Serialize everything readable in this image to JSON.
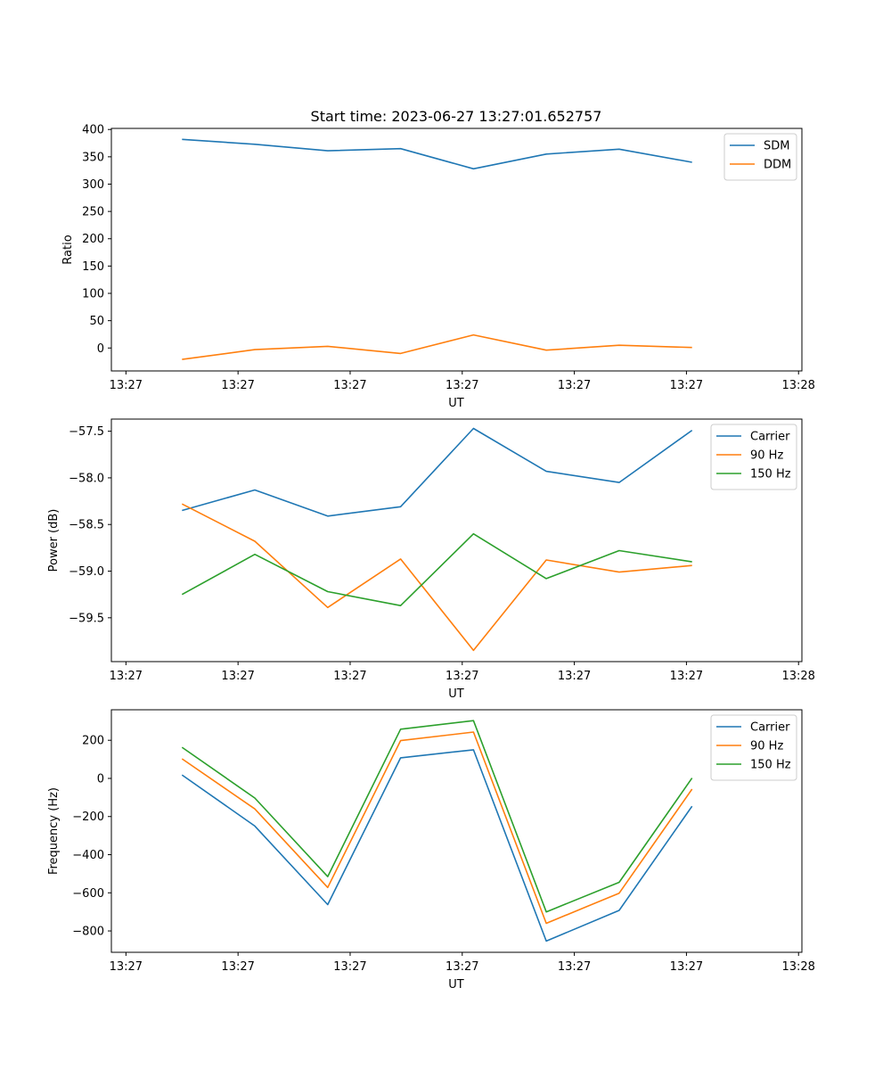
{
  "figure": {
    "title": "Start time: 2023-06-27 13:27:01.652757"
  },
  "chart_data": [
    {
      "type": "line",
      "xlabel": "UT",
      "ylabel": "Ratio",
      "x_tick_labels": [
        "13:27",
        "13:27",
        "13:27",
        "13:27",
        "13:27",
        "13:27",
        "13:28"
      ],
      "x_ticks": [
        0,
        1,
        2,
        3,
        4,
        5,
        6
      ],
      "x": [
        0.5,
        1.15,
        1.8,
        2.45,
        3.1,
        3.75,
        4.4,
        5.05
      ],
      "xlim": [
        -0.13,
        6.03
      ],
      "ylim": [
        -42,
        402
      ],
      "y_ticks": [
        0,
        50,
        100,
        150,
        200,
        250,
        300,
        350,
        400
      ],
      "legend_position": "upper right",
      "series": [
        {
          "name": "SDM",
          "color": "#1f77b4",
          "values": [
            382,
            373,
            361,
            365,
            328,
            355,
            364,
            340
          ]
        },
        {
          "name": "DDM",
          "color": "#ff7f0e",
          "values": [
            -21,
            -3,
            3,
            -10,
            24,
            -4,
            5,
            1
          ]
        }
      ]
    },
    {
      "type": "line",
      "xlabel": "UT",
      "ylabel": "Power (dB)",
      "x_tick_labels": [
        "13:27",
        "13:27",
        "13:27",
        "13:27",
        "13:27",
        "13:27",
        "13:28"
      ],
      "x_ticks": [
        0,
        1,
        2,
        3,
        4,
        5,
        6
      ],
      "x": [
        0.5,
        1.15,
        1.8,
        2.45,
        3.1,
        3.75,
        4.4,
        5.05
      ],
      "xlim": [
        -0.13,
        6.03
      ],
      "ylim": [
        -59.97,
        -57.37
      ],
      "y_ticks": [
        -59.5,
        -59.0,
        -58.5,
        -58.0,
        -57.5
      ],
      "y_tick_labels": [
        "−59.5",
        "−59.0",
        "−58.5",
        "−58.0",
        "−57.5"
      ],
      "legend_position": "upper right",
      "series": [
        {
          "name": "Carrier",
          "color": "#1f77b4",
          "values": [
            -58.35,
            -58.13,
            -58.41,
            -58.31,
            -57.47,
            -57.93,
            -58.05,
            -57.49
          ]
        },
        {
          "name": "90 Hz",
          "color": "#ff7f0e",
          "values": [
            -58.28,
            -58.68,
            -59.39,
            -58.87,
            -59.85,
            -58.88,
            -59.01,
            -58.94
          ]
        },
        {
          "name": "150 Hz",
          "color": "#2ca02c",
          "values": [
            -59.25,
            -58.82,
            -59.22,
            -59.37,
            -58.6,
            -59.08,
            -58.78,
            -58.9
          ]
        }
      ]
    },
    {
      "type": "line",
      "xlabel": "UT",
      "ylabel": "Frequency (Hz)",
      "x_tick_labels": [
        "13:27",
        "13:27",
        "13:27",
        "13:27",
        "13:27",
        "13:27",
        "13:28"
      ],
      "x_ticks": [
        0,
        1,
        2,
        3,
        4,
        5,
        6
      ],
      "x": [
        0.5,
        1.15,
        1.8,
        2.45,
        3.1,
        3.75,
        4.4,
        5.05
      ],
      "xlim": [
        -0.13,
        6.03
      ],
      "ylim": [
        -912,
        360
      ],
      "y_ticks": [
        -800,
        -600,
        -400,
        -200,
        0,
        200
      ],
      "y_tick_labels": [
        "−800",
        "−600",
        "−400",
        "−200",
        "0",
        "200"
      ],
      "legend_position": "upper right",
      "series": [
        {
          "name": "Carrier",
          "color": "#1f77b4",
          "values": [
            18,
            -250,
            -662,
            108,
            150,
            -853,
            -692,
            -146
          ]
        },
        {
          "name": "90 Hz",
          "color": "#ff7f0e",
          "values": [
            103,
            -160,
            -572,
            198,
            243,
            -760,
            -602,
            -56
          ]
        },
        {
          "name": "150 Hz",
          "color": "#2ca02c",
          "values": [
            163,
            -103,
            -515,
            258,
            303,
            -700,
            -545,
            2
          ]
        }
      ]
    }
  ]
}
